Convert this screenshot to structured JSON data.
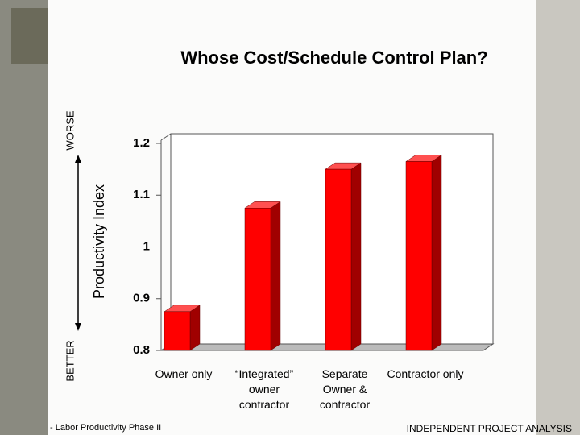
{
  "chart_data": {
    "type": "bar3d",
    "title": "Whose Cost/Schedule Control Plan?",
    "y_label": "Productivity Index",
    "categories": [
      "Owner only",
      "“Integrated” owner contractor",
      "Separate Owner & contractor",
      "Contractor only"
    ],
    "values": [
      0.875,
      1.075,
      1.15,
      1.165
    ],
    "color": "#ff0000",
    "ylim": [
      0.8,
      1.2
    ],
    "yticks": [
      0.8,
      0.9,
      1,
      1.1,
      1.2
    ],
    "grid": false,
    "annotations": {
      "worse": "WORSE",
      "better": "BETTER",
      "footnote": "- Labor Productivity Phase II",
      "footer": "INDEPENDENT PROJECT ANALYSIS"
    }
  }
}
